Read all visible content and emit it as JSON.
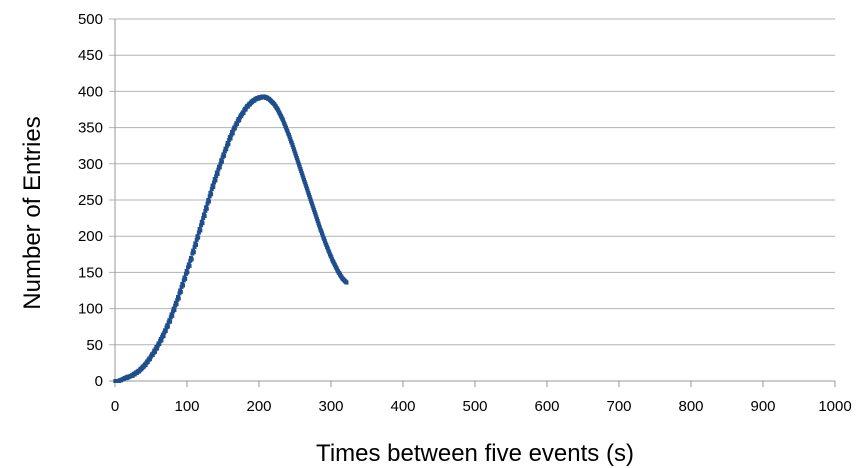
{
  "chart_data": {
    "type": "scatter",
    "title": "",
    "xlabel": "Times between five events (s)",
    "ylabel": "Number of Entries",
    "xlim": [
      0,
      1000
    ],
    "ylim": [
      0,
      500
    ],
    "x_ticks": [
      "0",
      "100",
      "200",
      "300",
      "400",
      "500",
      "600",
      "700",
      "800",
      "900",
      "1000"
    ],
    "y_ticks": [
      "0",
      "50",
      "100",
      "150",
      "200",
      "250",
      "300",
      "350",
      "400",
      "450",
      "500"
    ],
    "grid": true,
    "legend": "none",
    "marker_color": "#1f4e8c",
    "bin_width": 1,
    "values": [
      0,
      0,
      0,
      0,
      0,
      0,
      1,
      1,
      1,
      2,
      2,
      3,
      3,
      4,
      4,
      5,
      4,
      6,
      5,
      6,
      6,
      7,
      7,
      8,
      7,
      9,
      10,
      9,
      11,
      12,
      11,
      13,
      14,
      13,
      15,
      17,
      16,
      18,
      20,
      19,
      21,
      23,
      22,
      25,
      27,
      26,
      29,
      31,
      30,
      33,
      35,
      37,
      36,
      39,
      42,
      40,
      44,
      47,
      45,
      49,
      52,
      51,
      55,
      58,
      56,
      61,
      64,
      62,
      67,
      70,
      69,
      74,
      77,
      75,
      81,
      84,
      82,
      88,
      92,
      90,
      96,
      100,
      98,
      104,
      108,
      106,
      112,
      116,
      114,
      121,
      125,
      123,
      130,
      134,
      132,
      139,
      143,
      141,
      148,
      152,
      150,
      157,
      161,
      159,
      166,
      170,
      168,
      176,
      180,
      178,
      185,
      190,
      188,
      195,
      200,
      198,
      205,
      210,
      208,
      215,
      220,
      218,
      225,
      230,
      228,
      235,
      240,
      238,
      245,
      250,
      248,
      255,
      260,
      258,
      265,
      270,
      268,
      274,
      279,
      277,
      283,
      288,
      286,
      292,
      296,
      295,
      300,
      305,
      303,
      309,
      313,
      311,
      317,
      321,
      320,
      325,
      329,
      327,
      333,
      337,
      335,
      340,
      344,
      342,
      347,
      350,
      349,
      353,
      356,
      355,
      359,
      362,
      360,
      364,
      367,
      366,
      369,
      371,
      370,
      374,
      376,
      375,
      378,
      380,
      379,
      381,
      383,
      382,
      384,
      386,
      385,
      387,
      388,
      387,
      389,
      390,
      389,
      391,
      391,
      390,
      392,
      392,
      391,
      392,
      393,
      392,
      392,
      393,
      392,
      391,
      392,
      391,
      390,
      390,
      389,
      388,
      387,
      386,
      385,
      384,
      383,
      382,
      380,
      379,
      377,
      376,
      374,
      372,
      370,
      368,
      366,
      364,
      362,
      360,
      357,
      355,
      352,
      350,
      347,
      345,
      342,
      340,
      337,
      334,
      331,
      329,
      326,
      323,
      320,
      317,
      314,
      311,
      308,
      305,
      302,
      299,
      296,
      293,
      290,
      287,
      284,
      281,
      278,
      275,
      272,
      269,
      266,
      263,
      260,
      257,
      254,
      251,
      248,
      245,
      242,
      239,
      236,
      233,
      230,
      227,
      224,
      221,
      218,
      215,
      212,
      209,
      207,
      204,
      201,
      198,
      196,
      193,
      190,
      188,
      185,
      183,
      180,
      178,
      175,
      173,
      171,
      168,
      166,
      164,
      162,
      160,
      158,
      156,
      154,
      152,
      150,
      149,
      147,
      145,
      144,
      142,
      141,
      140,
      139,
      138,
      137,
      136
    ]
  }
}
